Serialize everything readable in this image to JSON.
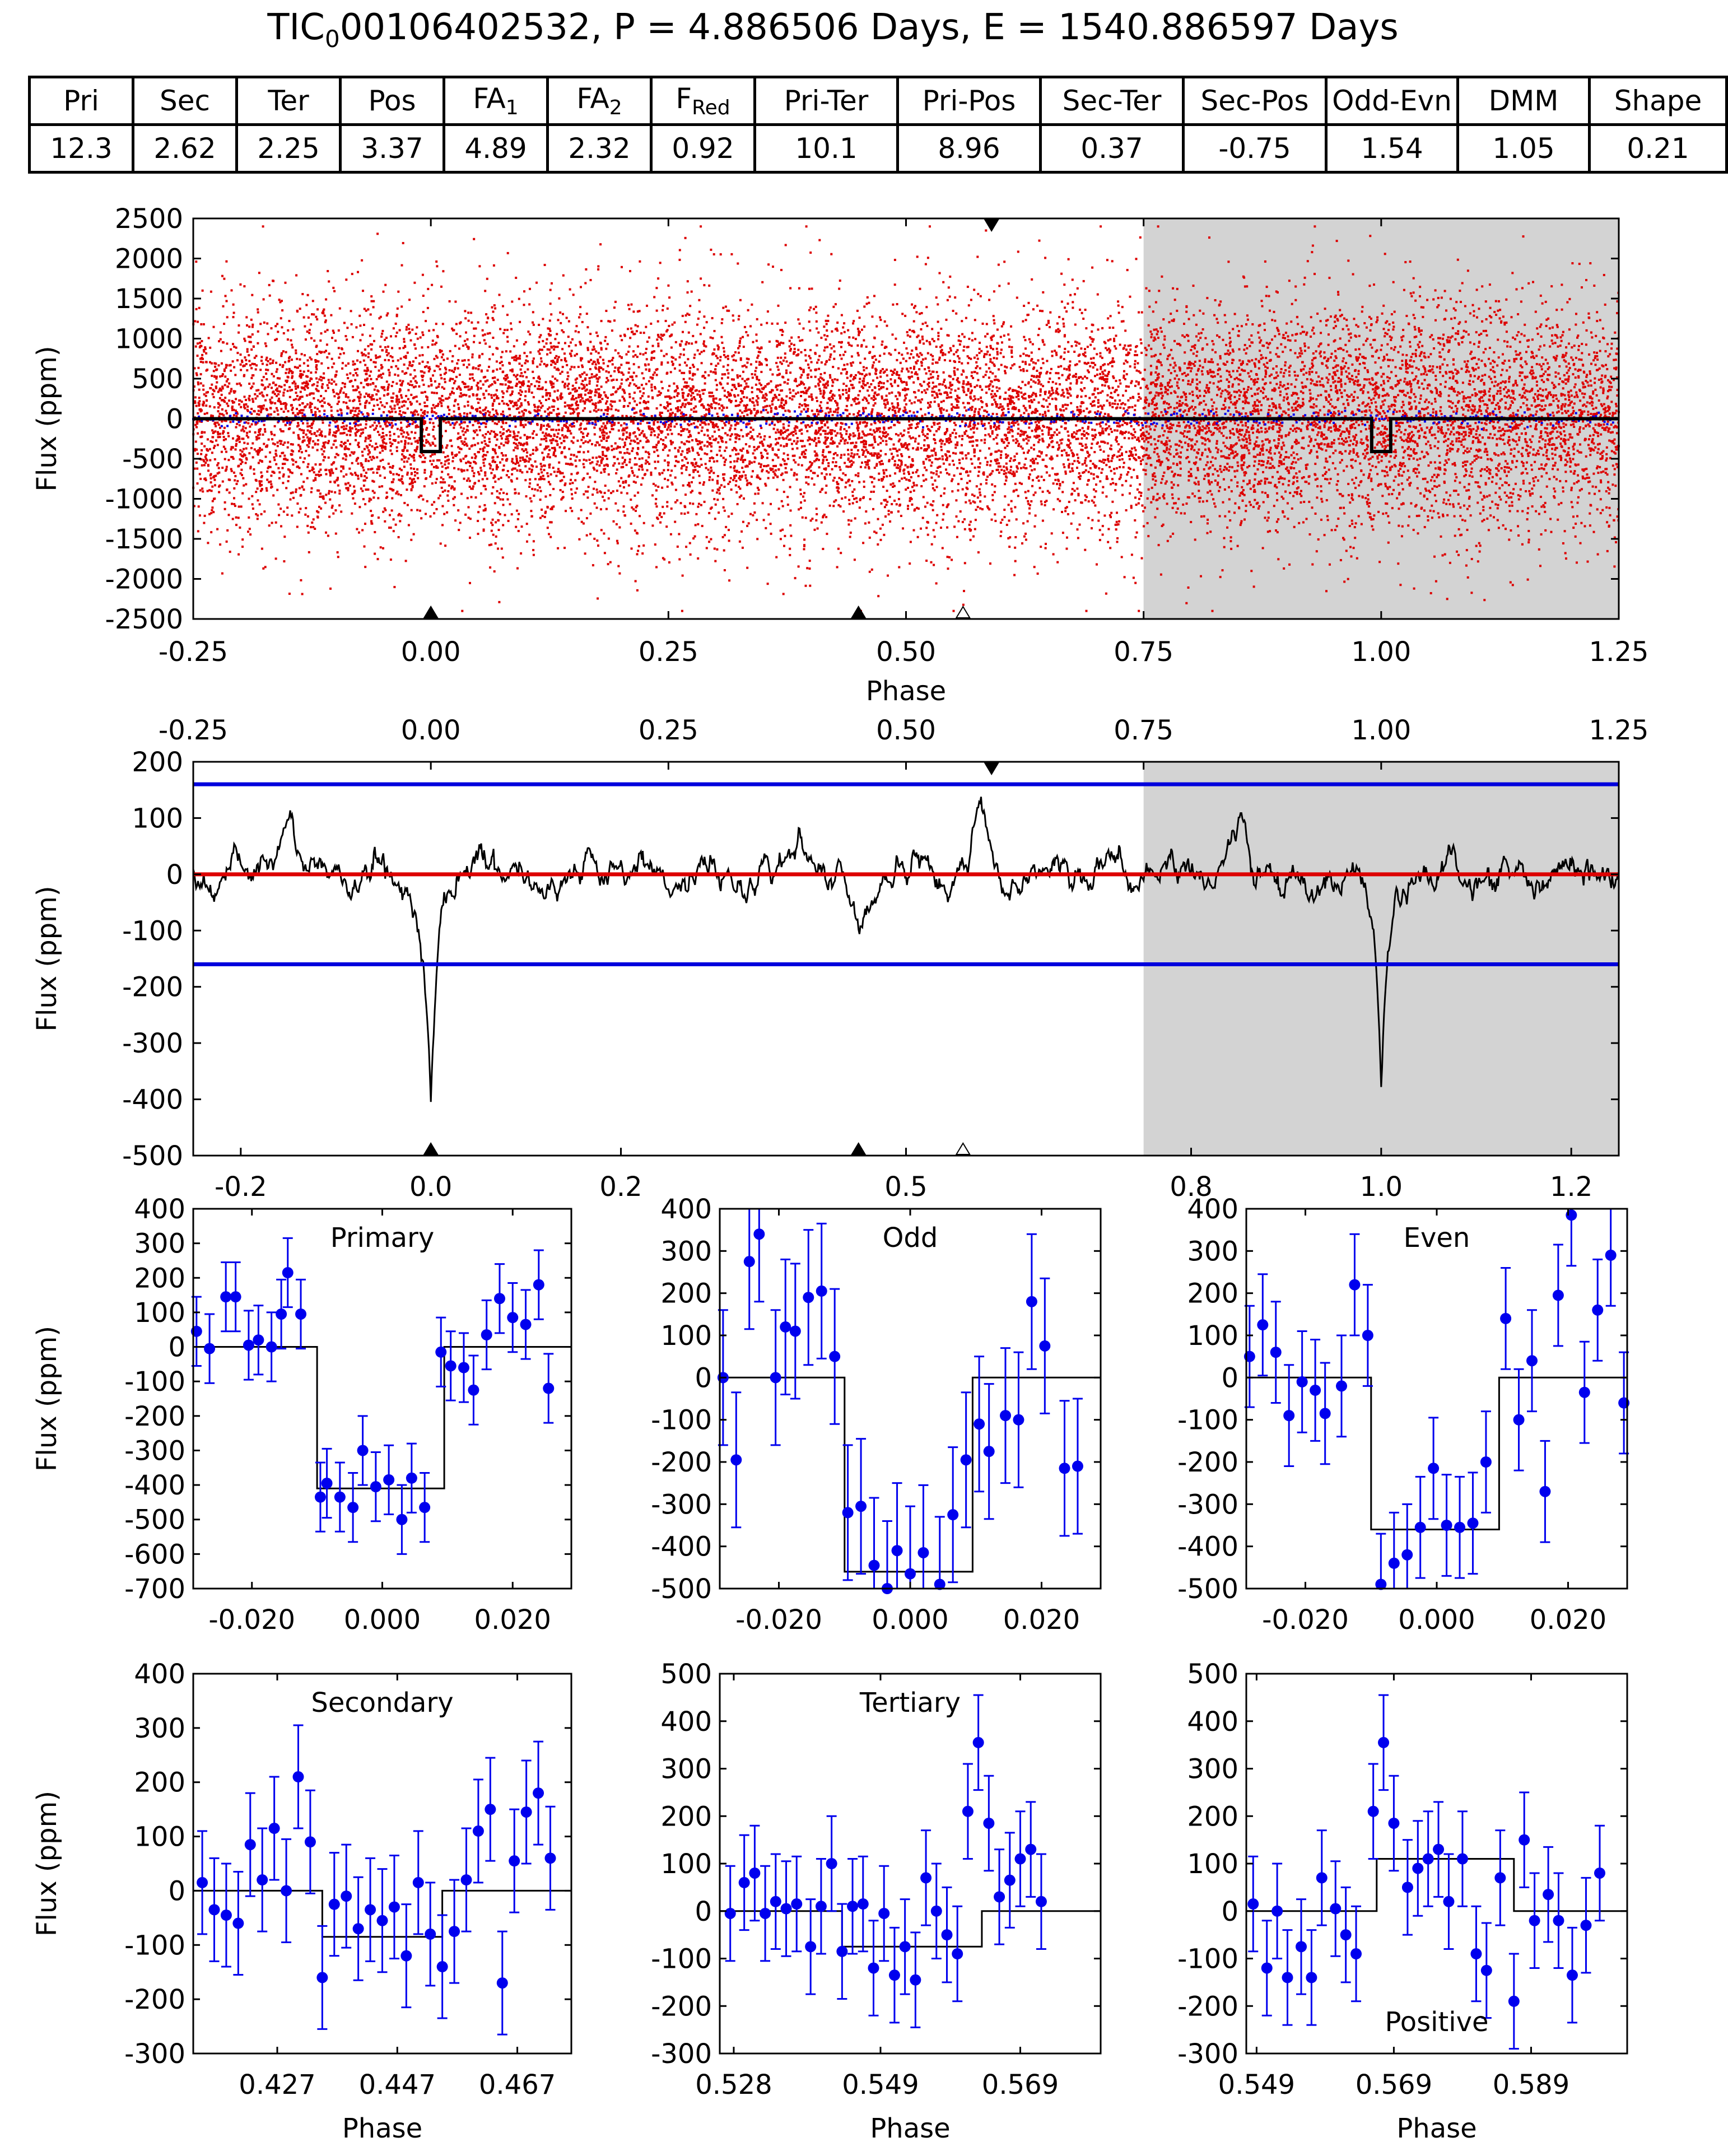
{
  "header": {
    "title_prefix": "TIC",
    "title_sub": "0",
    "title_rest": "00106402532, P = 4.886506 Days, E = 1540.886597 Days"
  },
  "stats_table": {
    "headers": [
      {
        "main": "Pri",
        "sub": ""
      },
      {
        "main": "Sec",
        "sub": ""
      },
      {
        "main": "Ter",
        "sub": ""
      },
      {
        "main": "Pos",
        "sub": ""
      },
      {
        "main": "FA",
        "sub": "1"
      },
      {
        "main": "FA",
        "sub": "2"
      },
      {
        "main": "F",
        "sub": "Red"
      },
      {
        "main": "Pri-Ter",
        "sub": ""
      },
      {
        "main": "Pri-Pos",
        "sub": ""
      },
      {
        "main": "Sec-Ter",
        "sub": ""
      },
      {
        "main": "Sec-Pos",
        "sub": ""
      },
      {
        "main": "Odd-Evn",
        "sub": ""
      },
      {
        "main": "DMM",
        "sub": ""
      },
      {
        "main": "Shape",
        "sub": ""
      }
    ],
    "values": [
      "12.3",
      "2.62",
      "2.25",
      "3.37",
      "4.89",
      "2.32",
      "0.92",
      "10.1",
      "8.96",
      "0.37",
      "-0.75",
      "1.54",
      "1.05",
      "0.21"
    ]
  },
  "colors": {
    "raw_points": "#dd0000",
    "binned_points": "#0000ee",
    "model": "#000000",
    "threshold_line": "#0000dd",
    "zero_line": "#dd0000",
    "shade": "#d3d3d3"
  },
  "chart_data": [
    {
      "id": "full-lightcurve",
      "type": "scatter",
      "ylabel": "Flux (ppm)",
      "xlabel": "Phase",
      "xlim": [
        -0.25,
        1.25
      ],
      "ylim": [
        -2500,
        2500
      ],
      "xticks": [
        "-0.25",
        "0.00",
        "0.25",
        "0.50",
        "0.75",
        "1.00",
        "1.25"
      ],
      "yticks": [
        "2500",
        "2000",
        "1500",
        "1000",
        "500",
        "0",
        "-500",
        "-1000",
        "-1500",
        "-2000",
        "-2500"
      ],
      "shaded_range": [
        0.75,
        1.25
      ],
      "scatter_sigma_ppm": 700,
      "model": {
        "depth": -410,
        "duration": 0.02,
        "centers": [
          0.0,
          1.0
        ]
      },
      "markers_bottom_filled": [
        0.0,
        0.45
      ],
      "markers_bottom_open": [
        0.56
      ],
      "markers_top_filled": [
        0.59
      ]
    },
    {
      "id": "convolved-lightcurve",
      "type": "line",
      "ylabel": "Flux (ppm)",
      "xlim": [
        -0.25,
        1.25
      ],
      "ylim": [
        -500,
        200
      ],
      "xticks_top": [
        "-0.25",
        "0.00",
        "0.25",
        "0.50",
        "0.75",
        "1.00",
        "1.25"
      ],
      "xticks_bottom": [
        "-0.2",
        "0.0",
        "0.2",
        "0.5",
        "0.8",
        "1.0",
        "1.2"
      ],
      "yticks": [
        "200",
        "100",
        "0",
        "-100",
        "-200",
        "-300",
        "-400",
        "-500"
      ],
      "shaded_range": [
        0.75,
        1.25
      ],
      "threshold_levels": [
        160,
        -160
      ],
      "zero_level": 0,
      "dips": [
        {
          "center": 0.0,
          "depth": -400,
          "width": 0.008
        },
        {
          "center": 1.0,
          "depth": -400,
          "width": 0.008
        }
      ],
      "bumps": [
        {
          "center": -0.15,
          "amp": 95
        },
        {
          "center": 0.05,
          "amp": 75
        },
        {
          "center": 0.39,
          "amp": 60
        },
        {
          "center": 0.58,
          "amp": 105
        },
        {
          "center": 0.85,
          "amp": 95
        },
        {
          "center": 0.45,
          "amp": -80
        },
        {
          "center": 0.93,
          "amp": -60
        }
      ],
      "markers_bottom_filled": [
        0.0,
        0.45
      ],
      "markers_bottom_open": [
        0.56
      ],
      "markers_top_filled": [
        0.59
      ]
    },
    {
      "id": "primary",
      "type": "errorbar",
      "label": "Primary",
      "ylabel": "Flux (ppm)",
      "xlim": [
        -0.029,
        0.029
      ],
      "ylim": [
        -700,
        400
      ],
      "xticks": [
        {
          "v": -0.02,
          "t": "-0.020"
        },
        {
          "v": 0.0,
          "t": "0.000"
        },
        {
          "v": 0.02,
          "t": "0.020"
        }
      ],
      "yticks": [
        400,
        300,
        200,
        100,
        0,
        -100,
        -200,
        -300,
        -400,
        -500,
        -600,
        -700
      ],
      "model": [
        [
          -0.029,
          0
        ],
        [
          -0.01,
          0
        ],
        [
          -0.01,
          -410
        ],
        [
          0.0095,
          -410
        ],
        [
          0.0095,
          0
        ],
        [
          0.029,
          0
        ]
      ],
      "err": 100,
      "points": [
        [
          -0.0285,
          45
        ],
        [
          -0.0265,
          -5
        ],
        [
          -0.024,
          145
        ],
        [
          -0.0225,
          145
        ],
        [
          -0.0205,
          5
        ],
        [
          -0.019,
          20
        ],
        [
          -0.017,
          0
        ],
        [
          -0.0155,
          95
        ],
        [
          -0.0145,
          215
        ],
        [
          -0.0125,
          95
        ],
        [
          -0.0095,
          -435
        ],
        [
          -0.0085,
          -395
        ],
        [
          -0.0065,
          -435
        ],
        [
          -0.0045,
          -465
        ],
        [
          -0.003,
          -300
        ],
        [
          -0.001,
          -405
        ],
        [
          0.001,
          -385
        ],
        [
          0.003,
          -500
        ],
        [
          0.0045,
          -380
        ],
        [
          0.0065,
          -465
        ],
        [
          0.009,
          -15
        ],
        [
          0.0105,
          -55
        ],
        [
          0.0125,
          -60
        ],
        [
          0.014,
          -125
        ],
        [
          0.016,
          35
        ],
        [
          0.018,
          140
        ],
        [
          0.02,
          85
        ],
        [
          0.022,
          65
        ],
        [
          0.024,
          180
        ],
        [
          0.0255,
          -120
        ]
      ]
    },
    {
      "id": "odd",
      "type": "errorbar",
      "label": "Odd",
      "ylabel": "",
      "xlim": [
        -0.029,
        0.029
      ],
      "ylim": [
        -500,
        400
      ],
      "xticks": [
        {
          "v": -0.02,
          "t": "-0.020"
        },
        {
          "v": 0.0,
          "t": "0.000"
        },
        {
          "v": 0.02,
          "t": "0.020"
        }
      ],
      "yticks": [
        400,
        300,
        200,
        100,
        0,
        -100,
        -200,
        -300,
        -400,
        -500
      ],
      "model": [
        [
          -0.029,
          0
        ],
        [
          -0.01,
          0
        ],
        [
          -0.01,
          -460
        ],
        [
          0.0095,
          -460
        ],
        [
          0.0095,
          0
        ],
        [
          0.029,
          0
        ]
      ],
      "err": 160,
      "points": [
        [
          -0.0285,
          0
        ],
        [
          -0.0265,
          -195
        ],
        [
          -0.0245,
          275
        ],
        [
          -0.023,
          340
        ],
        [
          -0.0205,
          0
        ],
        [
          -0.019,
          120
        ],
        [
          -0.0175,
          110
        ],
        [
          -0.0155,
          190
        ],
        [
          -0.0135,
          205
        ],
        [
          -0.0115,
          50
        ],
        [
          -0.0095,
          -320
        ],
        [
          -0.0075,
          -305
        ],
        [
          -0.0055,
          -445
        ],
        [
          -0.0035,
          -500
        ],
        [
          -0.002,
          -410
        ],
        [
          0.0,
          -465
        ],
        [
          0.002,
          -415
        ],
        [
          0.0045,
          -490
        ],
        [
          0.0065,
          -325
        ],
        [
          0.0085,
          -195
        ],
        [
          0.0105,
          -110
        ],
        [
          0.012,
          -175
        ],
        [
          0.0145,
          -90
        ],
        [
          0.0165,
          -100
        ],
        [
          0.0185,
          180
        ],
        [
          0.0205,
          75
        ],
        [
          0.0235,
          -215
        ],
        [
          0.0255,
          -210
        ]
      ]
    },
    {
      "id": "even",
      "type": "errorbar",
      "label": "Even",
      "ylabel": "",
      "xlim": [
        -0.029,
        0.029
      ],
      "ylim": [
        -500,
        400
      ],
      "xticks": [
        {
          "v": -0.02,
          "t": "-0.020"
        },
        {
          "v": 0.0,
          "t": "0.000"
        },
        {
          "v": 0.02,
          "t": "0.020"
        }
      ],
      "yticks": [
        400,
        300,
        200,
        100,
        0,
        -100,
        -200,
        -300,
        -400,
        -500
      ],
      "model": [
        [
          -0.029,
          0
        ],
        [
          -0.01,
          0
        ],
        [
          -0.01,
          -360
        ],
        [
          0.0095,
          -360
        ],
        [
          0.0095,
          0
        ],
        [
          0.029,
          0
        ]
      ],
      "err": 120,
      "points": [
        [
          -0.0285,
          50
        ],
        [
          -0.0265,
          125
        ],
        [
          -0.0245,
          60
        ],
        [
          -0.0225,
          -90
        ],
        [
          -0.0205,
          -10
        ],
        [
          -0.0185,
          -30
        ],
        [
          -0.017,
          -85
        ],
        [
          -0.0145,
          -20
        ],
        [
          -0.0125,
          220
        ],
        [
          -0.0105,
          100
        ],
        [
          -0.0085,
          -490
        ],
        [
          -0.0065,
          -440
        ],
        [
          -0.0045,
          -420
        ],
        [
          -0.0025,
          -355
        ],
        [
          -0.0005,
          -215
        ],
        [
          0.0015,
          -350
        ],
        [
          0.0035,
          -355
        ],
        [
          0.0055,
          -345
        ],
        [
          0.0075,
          -200
        ],
        [
          0.0105,
          140
        ],
        [
          0.0125,
          -100
        ],
        [
          0.0145,
          40
        ],
        [
          0.0165,
          -270
        ],
        [
          0.0185,
          195
        ],
        [
          0.0205,
          385
        ],
        [
          0.0225,
          -35
        ],
        [
          0.0245,
          160
        ],
        [
          0.0265,
          290
        ],
        [
          0.0285,
          -60
        ]
      ]
    },
    {
      "id": "secondary",
      "type": "errorbar",
      "label": "Secondary",
      "ylabel": "Flux (ppm)",
      "xlabel": "Phase",
      "xlim": [
        0.413,
        0.476
      ],
      "ylim": [
        -300,
        400
      ],
      "xticks": [
        {
          "v": 0.427,
          "t": "0.427"
        },
        {
          "v": 0.447,
          "t": "0.447"
        },
        {
          "v": 0.467,
          "t": "0.467"
        }
      ],
      "yticks": [
        400,
        300,
        200,
        100,
        0,
        -100,
        -200,
        -300
      ],
      "model": [
        [
          0.413,
          0
        ],
        [
          0.4345,
          0
        ],
        [
          0.4345,
          -85
        ],
        [
          0.4545,
          -85
        ],
        [
          0.4545,
          0
        ],
        [
          0.476,
          0
        ]
      ],
      "err": 95,
      "points": [
        [
          0.4145,
          15
        ],
        [
          0.4165,
          -35
        ],
        [
          0.4185,
          -45
        ],
        [
          0.4205,
          -60
        ],
        [
          0.4225,
          85
        ],
        [
          0.4245,
          20
        ],
        [
          0.4265,
          115
        ],
        [
          0.4285,
          0
        ],
        [
          0.4305,
          210
        ],
        [
          0.4325,
          90
        ],
        [
          0.4345,
          -160
        ],
        [
          0.4365,
          -25
        ],
        [
          0.4385,
          -10
        ],
        [
          0.4405,
          -70
        ],
        [
          0.4425,
          -35
        ],
        [
          0.4445,
          -55
        ],
        [
          0.4465,
          -30
        ],
        [
          0.4485,
          -120
        ],
        [
          0.4505,
          15
        ],
        [
          0.4525,
          -80
        ],
        [
          0.4545,
          -140
        ],
        [
          0.4565,
          -75
        ],
        [
          0.4585,
          20
        ],
        [
          0.4605,
          110
        ],
        [
          0.4625,
          150
        ],
        [
          0.4645,
          -170
        ],
        [
          0.4665,
          55
        ],
        [
          0.4685,
          145
        ],
        [
          0.4705,
          180
        ],
        [
          0.4725,
          60
        ]
      ]
    },
    {
      "id": "tertiary",
      "type": "errorbar",
      "label": "Tertiary",
      "ylabel": "",
      "xlabel": "Phase",
      "xlim": [
        0.526,
        0.5805
      ],
      "ylim": [
        -300,
        500
      ],
      "xticks": [
        {
          "v": 0.528,
          "t": "0.528"
        },
        {
          "v": 0.549,
          "t": "0.549"
        },
        {
          "v": 0.569,
          "t": "0.569"
        }
      ],
      "yticks": [
        500,
        400,
        300,
        200,
        100,
        0,
        -100,
        -200,
        -300
      ],
      "model": [
        [
          0.526,
          0
        ],
        [
          0.5435,
          0
        ],
        [
          0.5435,
          -75
        ],
        [
          0.5635,
          -75
        ],
        [
          0.5635,
          0
        ],
        [
          0.5805,
          0
        ]
      ],
      "err": 100,
      "points": [
        [
          0.5275,
          -5
        ],
        [
          0.5295,
          60
        ],
        [
          0.531,
          80
        ],
        [
          0.5325,
          -5
        ],
        [
          0.534,
          20
        ],
        [
          0.5355,
          5
        ],
        [
          0.537,
          15
        ],
        [
          0.539,
          -75
        ],
        [
          0.5405,
          10
        ],
        [
          0.542,
          100
        ],
        [
          0.5435,
          -85
        ],
        [
          0.545,
          10
        ],
        [
          0.5465,
          15
        ],
        [
          0.548,
          -120
        ],
        [
          0.5495,
          -5
        ],
        [
          0.551,
          -135
        ],
        [
          0.5525,
          -75
        ],
        [
          0.554,
          -145
        ],
        [
          0.5555,
          70
        ],
        [
          0.557,
          0
        ],
        [
          0.5585,
          -50
        ],
        [
          0.56,
          -90
        ],
        [
          0.5615,
          210
        ],
        [
          0.563,
          355
        ],
        [
          0.5645,
          185
        ],
        [
          0.566,
          30
        ],
        [
          0.5675,
          65
        ],
        [
          0.569,
          110
        ],
        [
          0.5705,
          130
        ],
        [
          0.572,
          20
        ]
      ]
    },
    {
      "id": "positive",
      "type": "errorbar",
      "label": "Positive",
      "label_position": "bottom",
      "ylabel": "",
      "xlabel": "Phase",
      "xlim": [
        0.5475,
        0.603
      ],
      "ylim": [
        -300,
        500
      ],
      "xticks": [
        {
          "v": 0.549,
          "t": "0.549"
        },
        {
          "v": 0.569,
          "t": "0.569"
        },
        {
          "v": 0.589,
          "t": "0.589"
        }
      ],
      "yticks": [
        500,
        400,
        300,
        200,
        100,
        0,
        -100,
        -200,
        -300
      ],
      "model": [
        [
          0.5475,
          0
        ],
        [
          0.5665,
          0
        ],
        [
          0.5665,
          110
        ],
        [
          0.5865,
          110
        ],
        [
          0.5865,
          0
        ],
        [
          0.603,
          0
        ]
      ],
      "err": 100,
      "points": [
        [
          0.5485,
          15
        ],
        [
          0.5505,
          -120
        ],
        [
          0.552,
          0
        ],
        [
          0.5535,
          -140
        ],
        [
          0.5555,
          -75
        ],
        [
          0.557,
          -140
        ],
        [
          0.5585,
          70
        ],
        [
          0.5605,
          5
        ],
        [
          0.562,
          -50
        ],
        [
          0.5635,
          -90
        ],
        [
          0.566,
          210
        ],
        [
          0.5675,
          355
        ],
        [
          0.569,
          185
        ],
        [
          0.571,
          50
        ],
        [
          0.5725,
          90
        ],
        [
          0.574,
          110
        ],
        [
          0.5755,
          130
        ],
        [
          0.577,
          20
        ],
        [
          0.579,
          110
        ],
        [
          0.581,
          -90
        ],
        [
          0.5825,
          -125
        ],
        [
          0.5845,
          70
        ],
        [
          0.5865,
          -190
        ],
        [
          0.588,
          150
        ],
        [
          0.5895,
          -20
        ],
        [
          0.5915,
          35
        ],
        [
          0.593,
          -20
        ],
        [
          0.595,
          -135
        ],
        [
          0.597,
          -30
        ],
        [
          0.599,
          80
        ]
      ]
    }
  ]
}
